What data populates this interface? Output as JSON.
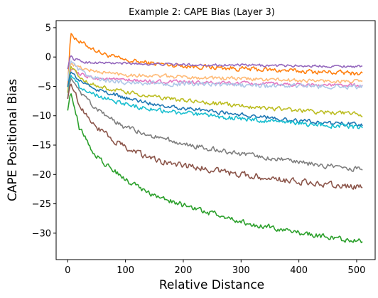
{
  "chart_data": {
    "type": "line",
    "title": "Example 2: CAPE Bias (Layer 3)",
    "xlabel": "Relative Distance",
    "ylabel": "CAPE Positional Bias",
    "xlim": [
      -20,
      532
    ],
    "ylim": [
      -34.5,
      6.2
    ],
    "xticks": [
      0,
      100,
      200,
      300,
      400,
      500
    ],
    "yticks": [
      5,
      0,
      -5,
      -10,
      -15,
      -20,
      -25,
      -30
    ],
    "grid": false,
    "legend": "none",
    "series": [
      {
        "color": "#ff7f0e",
        "points": [
          [
            0,
            -5
          ],
          [
            5,
            4
          ],
          [
            10,
            3.6
          ],
          [
            20,
            2.6
          ],
          [
            40,
            1.6
          ],
          [
            60,
            0.6
          ],
          [
            80,
            0
          ],
          [
            100,
            -0.6
          ],
          [
            150,
            -1.1
          ],
          [
            200,
            -1.5
          ],
          [
            300,
            -2.0
          ],
          [
            400,
            -2.4
          ],
          [
            510,
            -2.8
          ]
        ],
        "noise": 0.55
      },
      {
        "color": "#9467bd",
        "points": [
          [
            0,
            -2
          ],
          [
            5,
            0.4
          ],
          [
            10,
            -0.3
          ],
          [
            30,
            -0.9
          ],
          [
            100,
            -1.1
          ],
          [
            200,
            -1.3
          ],
          [
            300,
            -1.4
          ],
          [
            400,
            -1.5
          ],
          [
            510,
            -1.6
          ]
        ],
        "noise": 0.3
      },
      {
        "color": "#ffbb78",
        "points": [
          [
            0,
            -5
          ],
          [
            5,
            -1
          ],
          [
            20,
            -1.8
          ],
          [
            50,
            -2.5
          ],
          [
            100,
            -3
          ],
          [
            200,
            -3.4
          ],
          [
            300,
            -3.7
          ],
          [
            400,
            -4
          ],
          [
            510,
            -4.2
          ]
        ],
        "noise": 0.45
      },
      {
        "color": "#e377c2",
        "points": [
          [
            0,
            -6
          ],
          [
            5,
            -2
          ],
          [
            20,
            -3
          ],
          [
            50,
            -3.6
          ],
          [
            100,
            -4
          ],
          [
            200,
            -4.3
          ],
          [
            300,
            -4.5
          ],
          [
            400,
            -4.7
          ],
          [
            510,
            -4.9
          ]
        ],
        "noise": 0.45
      },
      {
        "color": "#aec7e8",
        "points": [
          [
            0,
            -4
          ],
          [
            5,
            -0.5
          ],
          [
            15,
            -2
          ],
          [
            40,
            -3.5
          ],
          [
            80,
            -4.2
          ],
          [
            150,
            -4.5
          ],
          [
            250,
            -4.7
          ],
          [
            350,
            -4.9
          ],
          [
            450,
            -5
          ],
          [
            510,
            -5.1
          ]
        ],
        "noise": 0.55
      },
      {
        "color": "#bcbd22",
        "points": [
          [
            0,
            -6
          ],
          [
            5,
            -1.5
          ],
          [
            20,
            -3.5
          ],
          [
            50,
            -5
          ],
          [
            100,
            -6
          ],
          [
            150,
            -6.8
          ],
          [
            200,
            -7.4
          ],
          [
            300,
            -8.3
          ],
          [
            400,
            -9.1
          ],
          [
            510,
            -9.8
          ]
        ],
        "noise": 0.5
      },
      {
        "color": "#1f77b4",
        "points": [
          [
            0,
            -5
          ],
          [
            5,
            -2.5
          ],
          [
            20,
            -4
          ],
          [
            50,
            -5.5
          ],
          [
            100,
            -7
          ],
          [
            150,
            -8
          ],
          [
            200,
            -8.7
          ],
          [
            300,
            -9.8
          ],
          [
            400,
            -10.9
          ],
          [
            510,
            -11.6
          ]
        ],
        "noise": 0.5
      },
      {
        "color": "#17becf",
        "points": [
          [
            0,
            -7
          ],
          [
            5,
            -3
          ],
          [
            20,
            -5
          ],
          [
            50,
            -6.5
          ],
          [
            100,
            -8
          ],
          [
            150,
            -9
          ],
          [
            200,
            -9.6
          ],
          [
            300,
            -10.5
          ],
          [
            400,
            -11.3
          ],
          [
            510,
            -12
          ]
        ],
        "noise": 0.55
      },
      {
        "color": "#7f7f7f",
        "points": [
          [
            0,
            -7
          ],
          [
            5,
            -3.5
          ],
          [
            20,
            -6
          ],
          [
            50,
            -9
          ],
          [
            100,
            -12
          ],
          [
            150,
            -13.5
          ],
          [
            200,
            -14.8
          ],
          [
            300,
            -16.5
          ],
          [
            400,
            -18
          ],
          [
            510,
            -19.2
          ]
        ],
        "noise": 0.6
      },
      {
        "color": "#8c564b",
        "points": [
          [
            0,
            -7
          ],
          [
            5,
            -4.5
          ],
          [
            20,
            -8
          ],
          [
            50,
            -12
          ],
          [
            100,
            -15.5
          ],
          [
            150,
            -17.5
          ],
          [
            200,
            -18.5
          ],
          [
            300,
            -20
          ],
          [
            400,
            -21.2
          ],
          [
            510,
            -22.3
          ]
        ],
        "noise": 0.75
      },
      {
        "color": "#2ca02c",
        "points": [
          [
            0,
            -9
          ],
          [
            5,
            -6
          ],
          [
            20,
            -12
          ],
          [
            50,
            -17
          ],
          [
            100,
            -21
          ],
          [
            150,
            -23.5
          ],
          [
            200,
            -25.2
          ],
          [
            300,
            -28
          ],
          [
            400,
            -30
          ],
          [
            510,
            -31.5
          ]
        ],
        "noise": 0.65
      }
    ]
  }
}
